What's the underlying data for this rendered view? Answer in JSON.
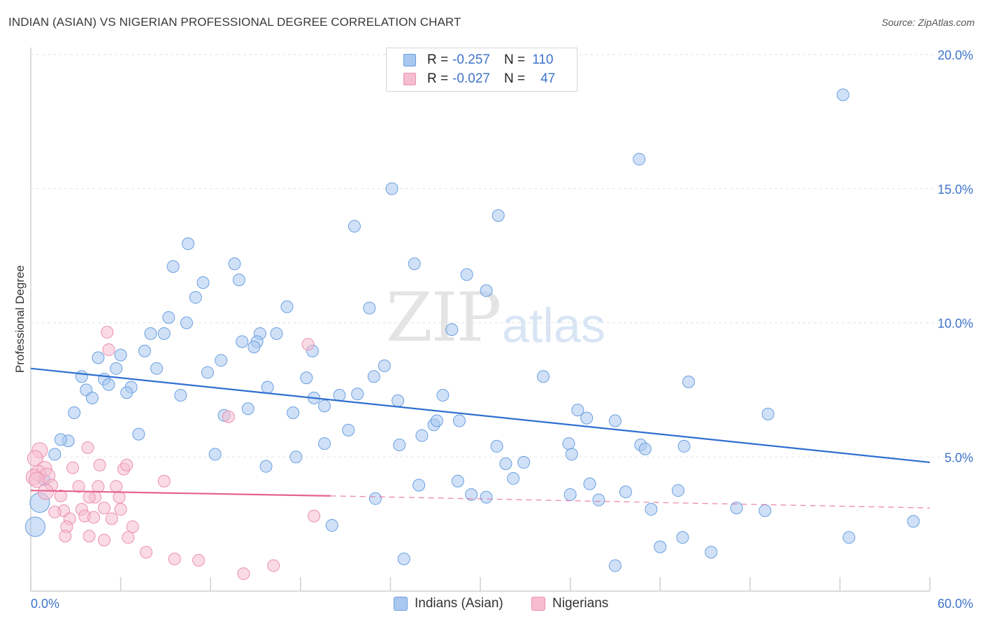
{
  "title": "INDIAN (ASIAN) VS NIGERIAN PROFESSIONAL DEGREE CORRELATION CHART",
  "source": "Source: ZipAtlas.com",
  "watermark": {
    "zip": "ZIP",
    "atlas": "atlas"
  },
  "legend": {
    "rows": [
      {
        "r_label": "R =",
        "r_value": "-0.257",
        "n_label": "N =",
        "n_value": "110",
        "color": "#a9c8f0",
        "border": "#6a9fe0"
      },
      {
        "r_label": "R =",
        "r_value": "-0.027",
        "n_label": "N =",
        "n_value": "47",
        "color": "#f6bdd0",
        "border": "#ec8fb1"
      }
    ]
  },
  "bottom_legend": [
    {
      "label": "Indians (Asian)",
      "color": "#a9c8f0",
      "border": "#6a9fe0"
    },
    {
      "label": "Nigerians",
      "color": "#f6bdd0",
      "border": "#ec8fb1"
    }
  ],
  "chart_data": {
    "type": "scatter",
    "title": "INDIAN (ASIAN) VS NIGERIAN PROFESSIONAL DEGREE CORRELATION CHART",
    "xlabel": "",
    "ylabel": "Professional Degree",
    "xlim": [
      0,
      60
    ],
    "ylim": [
      0,
      20.5
    ],
    "x_tick_labels": [
      "0.0%",
      "60.0%"
    ],
    "y_ticks": [
      5,
      10,
      15,
      20
    ],
    "y_tick_labels": [
      "5.0%",
      "10.0%",
      "15.0%",
      "20.0%"
    ],
    "grid": "horizontal dashed",
    "series": [
      {
        "name": "Indians (Asian)",
        "color": "#a9c8f0",
        "stroke": "#6a9fe0",
        "trend": {
          "x": [
            0,
            60
          ],
          "y": [
            8.3,
            4.8
          ],
          "color": "#2f6fd0"
        },
        "points": [
          [
            54.2,
            18.5
          ],
          [
            40.6,
            16.1
          ],
          [
            24.1,
            15.0
          ],
          [
            31.2,
            14.0
          ],
          [
            21.6,
            13.6
          ],
          [
            10.5,
            12.95
          ],
          [
            9.5,
            12.1
          ],
          [
            13.6,
            12.2
          ],
          [
            25.6,
            12.2
          ],
          [
            29.1,
            11.8
          ],
          [
            11.5,
            11.5
          ],
          [
            13.9,
            11.6
          ],
          [
            11.0,
            10.95
          ],
          [
            17.1,
            10.6
          ],
          [
            22.6,
            10.55
          ],
          [
            30.4,
            11.2
          ],
          [
            9.2,
            10.2
          ],
          [
            10.4,
            10.0
          ],
          [
            8.0,
            9.6
          ],
          [
            8.9,
            9.6
          ],
          [
            14.1,
            9.3
          ],
          [
            15.3,
            9.6
          ],
          [
            16.4,
            9.6
          ],
          [
            15.1,
            9.3
          ],
          [
            14.9,
            9.1
          ],
          [
            18.8,
            8.95
          ],
          [
            28.1,
            9.75
          ],
          [
            7.6,
            8.95
          ],
          [
            6.0,
            8.8
          ],
          [
            4.5,
            8.7
          ],
          [
            12.7,
            8.6
          ],
          [
            5.7,
            8.3
          ],
          [
            8.4,
            8.3
          ],
          [
            11.8,
            8.15
          ],
          [
            23.6,
            8.4
          ],
          [
            3.4,
            8.0
          ],
          [
            4.9,
            7.9
          ],
          [
            18.4,
            7.95
          ],
          [
            22.9,
            8.0
          ],
          [
            34.2,
            8.0
          ],
          [
            43.9,
            7.8
          ],
          [
            5.2,
            7.7
          ],
          [
            6.7,
            7.6
          ],
          [
            3.7,
            7.5
          ],
          [
            6.4,
            7.4
          ],
          [
            15.8,
            7.6
          ],
          [
            4.1,
            7.2
          ],
          [
            10.0,
            7.3
          ],
          [
            18.9,
            7.2
          ],
          [
            20.6,
            7.3
          ],
          [
            21.8,
            7.35
          ],
          [
            24.5,
            7.1
          ],
          [
            27.5,
            7.3
          ],
          [
            2.9,
            6.65
          ],
          [
            14.5,
            6.8
          ],
          [
            19.6,
            6.9
          ],
          [
            36.5,
            6.75
          ],
          [
            17.5,
            6.65
          ],
          [
            12.9,
            6.55
          ],
          [
            37.1,
            6.45
          ],
          [
            39.0,
            6.35
          ],
          [
            49.2,
            6.6
          ],
          [
            26.9,
            6.2
          ],
          [
            27.1,
            6.35
          ],
          [
            28.6,
            6.35
          ],
          [
            21.2,
            6.0
          ],
          [
            7.2,
            5.85
          ],
          [
            26.1,
            5.8
          ],
          [
            2.5,
            5.6
          ],
          [
            2.0,
            5.65
          ],
          [
            19.6,
            5.5
          ],
          [
            24.6,
            5.45
          ],
          [
            31.1,
            5.4
          ],
          [
            35.9,
            5.5
          ],
          [
            40.7,
            5.45
          ],
          [
            41.0,
            5.3
          ],
          [
            43.6,
            5.4
          ],
          [
            36.1,
            5.1
          ],
          [
            1.6,
            5.1
          ],
          [
            12.3,
            5.1
          ],
          [
            15.7,
            4.65
          ],
          [
            17.7,
            5.0
          ],
          [
            31.7,
            4.75
          ],
          [
            32.9,
            4.8
          ],
          [
            32.2,
            4.2
          ],
          [
            0.9,
            4.15
          ],
          [
            25.9,
            3.95
          ],
          [
            28.5,
            4.1
          ],
          [
            37.3,
            4.0
          ],
          [
            43.2,
            3.75
          ],
          [
            39.7,
            3.7
          ],
          [
            36.0,
            3.6
          ],
          [
            29.4,
            3.6
          ],
          [
            30.4,
            3.5
          ],
          [
            37.9,
            3.4
          ],
          [
            23.0,
            3.45
          ],
          [
            49.0,
            3.0
          ],
          [
            41.4,
            3.05
          ],
          [
            47.1,
            3.1
          ],
          [
            58.9,
            2.6
          ],
          [
            20.1,
            2.45
          ],
          [
            43.5,
            2.0
          ],
          [
            54.6,
            2.0
          ],
          [
            42.0,
            1.65
          ],
          [
            45.4,
            1.45
          ],
          [
            24.9,
            1.2
          ],
          [
            39.0,
            0.95
          ],
          [
            0.6,
            3.3
          ],
          [
            0.3,
            2.4
          ]
        ]
      },
      {
        "name": "Nigerians",
        "color": "#f6bdd0",
        "stroke": "#ec8fb1",
        "trend": {
          "x": [
            0,
            20
          ],
          "y": [
            3.75,
            3.55
          ],
          "x_dashed": [
            20,
            60
          ],
          "y_dashed": [
            3.55,
            3.1
          ],
          "color": "#e5628f"
        },
        "points": [
          [
            5.1,
            9.65
          ],
          [
            5.2,
            9.0
          ],
          [
            18.5,
            9.2
          ],
          [
            13.2,
            6.5
          ],
          [
            0.6,
            5.25
          ],
          [
            3.8,
            5.35
          ],
          [
            0.3,
            4.95
          ],
          [
            0.9,
            4.55
          ],
          [
            2.8,
            4.6
          ],
          [
            4.6,
            4.7
          ],
          [
            6.2,
            4.55
          ],
          [
            6.4,
            4.7
          ],
          [
            0.5,
            4.4
          ],
          [
            1.1,
            4.3
          ],
          [
            0.2,
            4.25
          ],
          [
            1.4,
            3.95
          ],
          [
            3.2,
            3.9
          ],
          [
            4.5,
            3.9
          ],
          [
            5.7,
            3.9
          ],
          [
            8.9,
            4.1
          ],
          [
            2.0,
            3.55
          ],
          [
            4.3,
            3.5
          ],
          [
            3.9,
            3.5
          ],
          [
            5.9,
            3.5
          ],
          [
            2.2,
            3.0
          ],
          [
            1.6,
            2.95
          ],
          [
            3.4,
            3.05
          ],
          [
            4.9,
            3.1
          ],
          [
            6.0,
            3.05
          ],
          [
            3.6,
            2.8
          ],
          [
            2.6,
            2.7
          ],
          [
            4.2,
            2.75
          ],
          [
            5.4,
            2.7
          ],
          [
            18.9,
            2.8
          ],
          [
            2.4,
            2.4
          ],
          [
            6.8,
            2.4
          ],
          [
            2.3,
            2.05
          ],
          [
            3.9,
            2.05
          ],
          [
            6.5,
            2.0
          ],
          [
            4.9,
            1.9
          ],
          [
            7.7,
            1.45
          ],
          [
            9.6,
            1.2
          ],
          [
            11.2,
            1.15
          ],
          [
            16.2,
            0.95
          ],
          [
            14.2,
            0.65
          ],
          [
            0.4,
            4.15
          ],
          [
            1.0,
            3.7
          ]
        ]
      }
    ]
  }
}
